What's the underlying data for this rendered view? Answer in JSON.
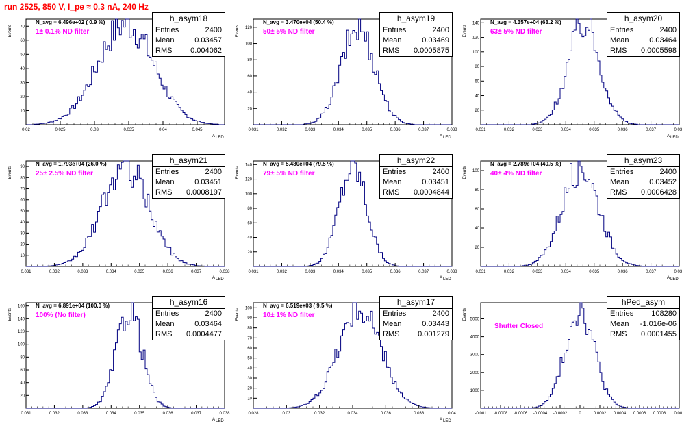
{
  "canvas_title": "run 2525,   850 V, I_pe ≈ 0.3 nA, 240 Hz",
  "colors": {
    "histogram": "#000080",
    "filter_text": "#ff00ff",
    "title": "#ff0000",
    "frame": "#000000"
  },
  "chart_data": [
    {
      "type": "bar",
      "name": "h_asym18",
      "navg": "N_avg = 6.496e+02 ( 0.9 %)",
      "filter": "1± 0.1% ND filter",
      "stats": {
        "entries": "2400",
        "mean": "0.03457",
        "rms": "0.004062"
      },
      "xlim": [
        0.02,
        0.049
      ],
      "ylim": [
        0,
        75
      ],
      "xticks": [
        "0.02",
        "0.025",
        "0.03",
        "0.035",
        "0.04",
        "0.045"
      ],
      "xtick_values": [
        0.02,
        0.025,
        0.03,
        0.035,
        0.04,
        0.045
      ],
      "yticks": [
        10,
        20,
        30,
        40,
        50,
        60,
        70
      ],
      "xlabel": "A",
      "xlabel_sub": "LED",
      "ylabel": "Events",
      "mean": 0.03457,
      "rms": 0.004062,
      "peak": 72
    },
    {
      "type": "bar",
      "name": "h_asym19",
      "navg": "N_avg = 3.470e+04 (50.4 %)",
      "filter": "50± 5% ND filter",
      "stats": {
        "entries": "2400",
        "mean": "0.03469",
        "rms": "0.0005875"
      },
      "xlim": [
        0.031,
        0.038
      ],
      "ylim": [
        0,
        130
      ],
      "xticks": [
        "0.031",
        "0.032",
        "0.033",
        "0.034",
        "0.035",
        "0.036",
        "0.037",
        "0.038"
      ],
      "xtick_values": [
        0.031,
        0.032,
        0.033,
        0.034,
        0.035,
        0.036,
        0.037,
        0.038
      ],
      "yticks": [
        20,
        40,
        60,
        80,
        100,
        120
      ],
      "xlabel": "A",
      "xlabel_sub": "LED",
      "ylabel": "Events",
      "mean": 0.03469,
      "rms": 0.0005875,
      "peak": 120
    },
    {
      "type": "bar",
      "name": "h_asym20",
      "navg": "N_avg = 4.357e+04 (63.2 %)",
      "filter": "63± 5% ND filter",
      "stats": {
        "entries": "2400",
        "mean": "0.03464",
        "rms": "0.0005598"
      },
      "xlim": [
        0.031,
        0.038
      ],
      "ylim": [
        0,
        145
      ],
      "xticks": [
        "0.031",
        "0.032",
        "0.033",
        "0.034",
        "0.035",
        "0.036",
        "0.037",
        "0.038"
      ],
      "xtick_values": [
        0.031,
        0.032,
        0.033,
        0.034,
        0.035,
        0.036,
        0.037,
        0.038
      ],
      "yticks": [
        20,
        40,
        60,
        80,
        100,
        120,
        140
      ],
      "xlabel": "A",
      "xlabel_sub": "LED",
      "ylabel": "Events",
      "mean": 0.03464,
      "rms": 0.0005598,
      "peak": 140
    },
    {
      "type": "bar",
      "name": "h_asym21",
      "navg": "N_avg = 1.793e+04 (26.0 %)",
      "filter": "25± 2.5% ND filter",
      "stats": {
        "entries": "2400",
        "mean": "0.03451",
        "rms": "0.0008197"
      },
      "xlim": [
        0.031,
        0.038
      ],
      "ylim": [
        0,
        95
      ],
      "xticks": [
        "0.031",
        "0.032",
        "0.033",
        "0.034",
        "0.035",
        "0.036",
        "0.037",
        "0.038"
      ],
      "xtick_values": [
        0.031,
        0.032,
        0.033,
        0.034,
        0.035,
        0.036,
        0.037,
        0.038
      ],
      "yticks": [
        10,
        20,
        30,
        40,
        50,
        60,
        70,
        80,
        90
      ],
      "xlabel": "A",
      "xlabel_sub": "LED",
      "ylabel": "Events",
      "mean": 0.03451,
      "rms": 0.0008197,
      "peak": 90
    },
    {
      "type": "bar",
      "name": "h_asym22",
      "navg": "N_avg = 5.480e+04 (79.5 %)",
      "filter": "79± 5% ND filter",
      "stats": {
        "entries": "2400",
        "mean": "0.03451",
        "rms": "0.0004844"
      },
      "xlim": [
        0.031,
        0.038
      ],
      "ylim": [
        0,
        145
      ],
      "xticks": [
        "0.031",
        "0.032",
        "0.033",
        "0.034",
        "0.035",
        "0.036",
        "0.037",
        "0.038"
      ],
      "xtick_values": [
        0.031,
        0.032,
        0.033,
        0.034,
        0.035,
        0.036,
        0.037,
        0.038
      ],
      "yticks": [
        20,
        40,
        60,
        80,
        100,
        120,
        140
      ],
      "xlabel": "A",
      "xlabel_sub": "LED",
      "ylabel": "Events",
      "mean": 0.03451,
      "rms": 0.0004844,
      "peak": 140
    },
    {
      "type": "bar",
      "name": "h_asym23",
      "navg": "N_avg = 2.789e+04 (40.5 %)",
      "filter": "40± 4% ND filter",
      "stats": {
        "entries": "2400",
        "mean": "0.03452",
        "rms": "0.0006428"
      },
      "xlim": [
        0.031,
        0.038
      ],
      "ylim": [
        0,
        110
      ],
      "xticks": [
        "0.031",
        "0.032",
        "0.033",
        "0.034",
        "0.035",
        "0.036",
        "0.037",
        "0.038"
      ],
      "xtick_values": [
        0.031,
        0.032,
        0.033,
        0.034,
        0.035,
        0.036,
        0.037,
        0.038
      ],
      "yticks": [
        20,
        40,
        60,
        80,
        100
      ],
      "xlabel": "A",
      "xlabel_sub": "LED",
      "ylabel": "Events",
      "mean": 0.03452,
      "rms": 0.0006428,
      "peak": 105
    },
    {
      "type": "bar",
      "name": "h_asym16",
      "navg": "N_avg = 6.891e+04 (100.0 %)",
      "filter": "100% (No filter)",
      "stats": {
        "entries": "2400",
        "mean": "0.03464",
        "rms": "0.0004477"
      },
      "xlim": [
        0.031,
        0.038
      ],
      "ylim": [
        0,
        165
      ],
      "xticks": [
        "0.031",
        "0.032",
        "0.033",
        "0.034",
        "0.035",
        "0.036",
        "0.037",
        "0.038"
      ],
      "xtick_values": [
        0.031,
        0.032,
        0.033,
        0.034,
        0.035,
        0.036,
        0.037,
        0.038
      ],
      "yticks": [
        20,
        40,
        60,
        80,
        100,
        120,
        140,
        160
      ],
      "xlabel": "A",
      "xlabel_sub": "LED",
      "ylabel": "Events",
      "mean": 0.03464,
      "rms": 0.0004477,
      "peak": 155
    },
    {
      "type": "bar",
      "name": "h_asym17",
      "navg": "N_avg = 6.519e+03 ( 9.5 %)",
      "filter": "10± 1% ND filter",
      "stats": {
        "entries": "2400",
        "mean": "0.03443",
        "rms": "0.001279"
      },
      "xlim": [
        0.028,
        0.04
      ],
      "ylim": [
        0,
        105
      ],
      "xticks": [
        "0.028",
        "0.03",
        "0.032",
        "0.034",
        "0.036",
        "0.038",
        "0.04"
      ],
      "xtick_values": [
        0.028,
        0.03,
        0.032,
        0.034,
        0.036,
        0.038,
        0.04
      ],
      "yticks": [
        10,
        20,
        30,
        40,
        50,
        60,
        70,
        80,
        90,
        100
      ],
      "xlabel": "A",
      "xlabel_sub": "LED",
      "ylabel": "Events",
      "mean": 0.03443,
      "rms": 0.001279,
      "peak": 100
    },
    {
      "type": "bar",
      "name": "hPed_asym",
      "navg": "",
      "filter": "Shutter Closed",
      "stats": {
        "entries": "108280",
        "mean": "-1.016e-06",
        "rms": "0.0001455"
      },
      "xlim": [
        -0.001,
        0.001
      ],
      "ylim": [
        0,
        5900
      ],
      "xticks": [
        "-0.001",
        "-0.0008",
        "-0.0006",
        "-0.0004",
        "-0.0002",
        "0",
        "0.0002",
        "0.0004",
        "0.0006",
        "0.0008",
        "0.001"
      ],
      "xtick_values": [
        -0.001,
        -0.0008,
        -0.0006,
        -0.0004,
        -0.0002,
        0,
        0.0002,
        0.0004,
        0.0006,
        0.0008,
        0.001
      ],
      "yticks": [
        1000,
        2000,
        3000,
        4000,
        5000
      ],
      "xlabel": "",
      "xlabel_sub": "",
      "ylabel": "Events",
      "mean": -1.016e-06,
      "rms": 0.0001455,
      "peak": 5650
    }
  ]
}
